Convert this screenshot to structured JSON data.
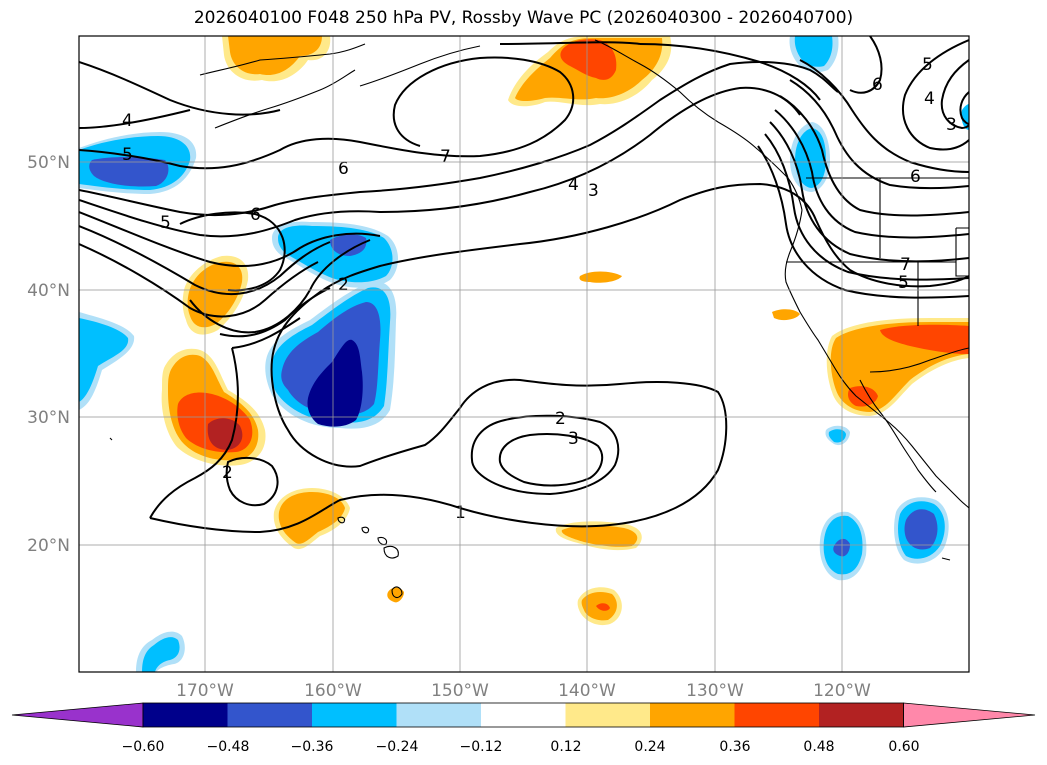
{
  "title": "2026040100 F048 250 hPa PV, Rossby Wave PC (2026040300 - 2026040700)",
  "lat_labels": [
    "50°N",
    "40°N",
    "30°N",
    "20°N"
  ],
  "lon_labels": [
    "170°W",
    "160°W",
    "150°W",
    "140°W",
    "130°W",
    "120°W"
  ],
  "colorbar": {
    "ticks": [
      "−0.60",
      "−0.48",
      "−0.36",
      "−0.24",
      "−0.12",
      "0.12",
      "0.24",
      "0.36",
      "0.48",
      "0.60"
    ],
    "colors": [
      "#9932cc",
      "#00008b",
      "#3355cc",
      "#00bfff",
      "#b0e0f8",
      "#ffffff",
      "#ffe98a",
      "#ffa500",
      "#ff4500",
      "#b22222",
      "#ff88aa"
    ]
  },
  "contour_labels": [
    "4",
    "5",
    "5",
    "6",
    "6",
    "7",
    "4",
    "3",
    "2",
    "2",
    "3",
    "1",
    "2",
    "6",
    "5",
    "4",
    "3",
    "6",
    "7",
    "5"
  ]
}
